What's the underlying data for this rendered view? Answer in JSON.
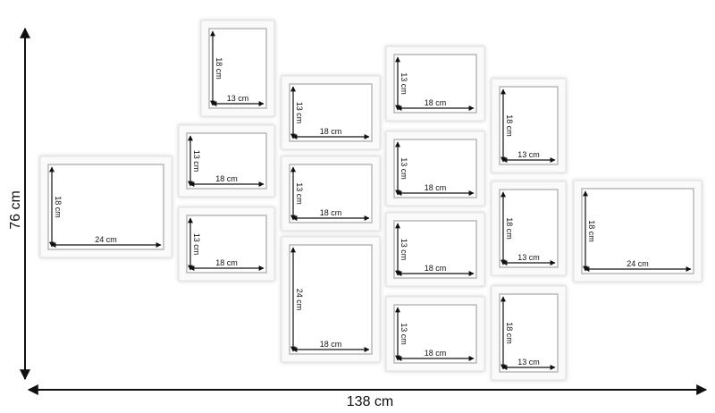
{
  "overall": {
    "height": "76 cm",
    "width": "138 cm"
  },
  "frames": [
    {
      "height": "18 cm",
      "width": "24 cm"
    },
    {
      "height": "18 cm",
      "width": "13 cm"
    },
    {
      "height": "13 cm",
      "width": "18 cm"
    },
    {
      "height": "13 cm",
      "width": "18 cm"
    },
    {
      "height": "13 cm",
      "width": "18 cm"
    },
    {
      "height": "13 cm",
      "width": "18 cm"
    },
    {
      "height": "24 cm",
      "width": "18 cm"
    },
    {
      "height": "13 cm",
      "width": "18 cm"
    },
    {
      "height": "13 cm",
      "width": "18 cm"
    },
    {
      "height": "13 cm",
      "width": "18 cm"
    },
    {
      "height": "13 cm",
      "width": "18 cm"
    },
    {
      "height": "18 cm",
      "width": "13 cm"
    },
    {
      "height": "18 cm",
      "width": "13 cm"
    },
    {
      "height": "18 cm",
      "width": "13 cm"
    },
    {
      "height": "18 cm",
      "width": "24 cm"
    }
  ]
}
